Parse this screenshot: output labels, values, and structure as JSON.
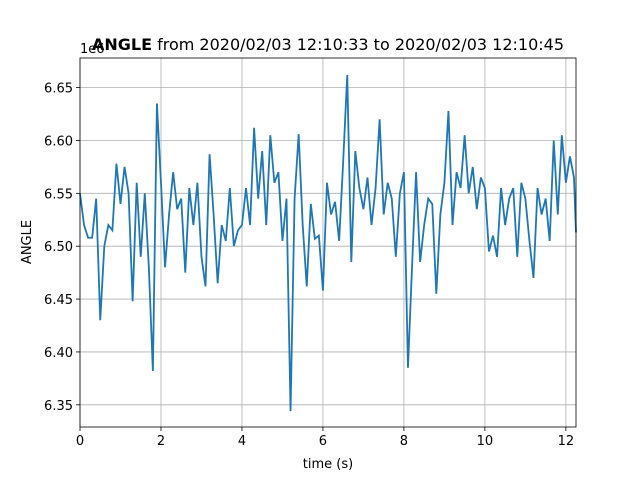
{
  "chart_data": {
    "type": "line",
    "title_bold": "ANGLE",
    "title": "from 2020/02/03 12:10:33 to 2020/02/03 12:10:45",
    "y_offset_label": "1e6",
    "xlabel": "time (s)",
    "ylabel": "ANGLE",
    "x": [
      0,
      0.1,
      0.2,
      0.3,
      0.4,
      0.5,
      0.6,
      0.7,
      0.8,
      0.9,
      1.0,
      1.1,
      1.2,
      1.3,
      1.4,
      1.5,
      1.6,
      1.7,
      1.8,
      1.9,
      2.0,
      2.1,
      2.2,
      2.3,
      2.4,
      2.5,
      2.6,
      2.7,
      2.8,
      2.9,
      3.0,
      3.1,
      3.2,
      3.3,
      3.4,
      3.5,
      3.6,
      3.7,
      3.8,
      3.9,
      4.0,
      4.1,
      4.2,
      4.3,
      4.4,
      4.5,
      4.6,
      4.7,
      4.8,
      4.9,
      5.0,
      5.1,
      5.2,
      5.3,
      5.4,
      5.5,
      5.6,
      5.7,
      5.8,
      5.9,
      6.0,
      6.1,
      6.2,
      6.3,
      6.4,
      6.5,
      6.6,
      6.7,
      6.8,
      6.9,
      7.0,
      7.1,
      7.2,
      7.3,
      7.4,
      7.5,
      7.6,
      7.7,
      7.8,
      7.9,
      8.0,
      8.1,
      8.2,
      8.3,
      8.4,
      8.5,
      8.6,
      8.7,
      8.8,
      8.9,
      9.0,
      9.1,
      9.2,
      9.3,
      9.4,
      9.5,
      9.6,
      9.7,
      9.8,
      9.9,
      10.0,
      10.1,
      10.2,
      10.3,
      10.4,
      10.5,
      10.6,
      10.7,
      10.8,
      10.9,
      11.0,
      11.1,
      11.2,
      11.3,
      11.4,
      11.5,
      11.6,
      11.7,
      11.8,
      11.9,
      12.0,
      12.1,
      12.2,
      12.25
    ],
    "series": [
      {
        "color": "#1f77b4",
        "values": [
          6.55,
          6.52,
          6.508,
          6.508,
          6.545,
          6.43,
          6.5,
          6.52,
          6.515,
          6.578,
          6.54,
          6.575,
          6.55,
          6.448,
          6.56,
          6.49,
          6.55,
          6.48,
          6.382,
          6.635,
          6.56,
          6.48,
          6.53,
          6.57,
          6.535,
          6.545,
          6.475,
          6.555,
          6.52,
          6.56,
          6.49,
          6.462,
          6.587,
          6.53,
          6.465,
          6.52,
          6.505,
          6.555,
          6.5,
          6.515,
          6.52,
          6.555,
          6.52,
          6.612,
          6.545,
          6.59,
          6.52,
          6.605,
          6.56,
          6.57,
          6.505,
          6.545,
          6.344,
          6.545,
          6.606,
          6.52,
          6.462,
          6.54,
          6.507,
          6.51,
          6.458,
          6.56,
          6.53,
          6.542,
          6.505,
          6.58,
          6.662,
          6.485,
          6.59,
          6.555,
          6.535,
          6.565,
          6.52,
          6.555,
          6.62,
          6.53,
          6.56,
          6.545,
          6.49,
          6.55,
          6.57,
          6.385,
          6.48,
          6.57,
          6.485,
          6.52,
          6.545,
          6.54,
          6.455,
          6.53,
          6.56,
          6.628,
          6.52,
          6.57,
          6.555,
          6.605,
          6.55,
          6.575,
          6.535,
          6.565,
          6.555,
          6.495,
          6.51,
          6.49,
          6.555,
          6.52,
          6.545,
          6.555,
          6.49,
          6.56,
          6.545,
          6.505,
          6.47,
          6.555,
          6.53,
          6.545,
          6.505,
          6.6,
          6.53,
          6.605,
          6.56,
          6.585,
          6.565,
          6.513
        ]
      }
    ],
    "xlim": [
      0,
      12.25
    ],
    "ylim": [
      6.329,
      6.678
    ],
    "xticks": [
      0,
      2,
      4,
      6,
      8,
      10,
      12
    ],
    "yticks": [
      6.35,
      {
        "value": 6.4,
        "label": "6.40"
      },
      6.45,
      {
        "value": 6.5,
        "label": "6.50"
      },
      6.55,
      {
        "value": 6.6,
        "label": "6.60"
      },
      6.65
    ],
    "grid": true
  }
}
